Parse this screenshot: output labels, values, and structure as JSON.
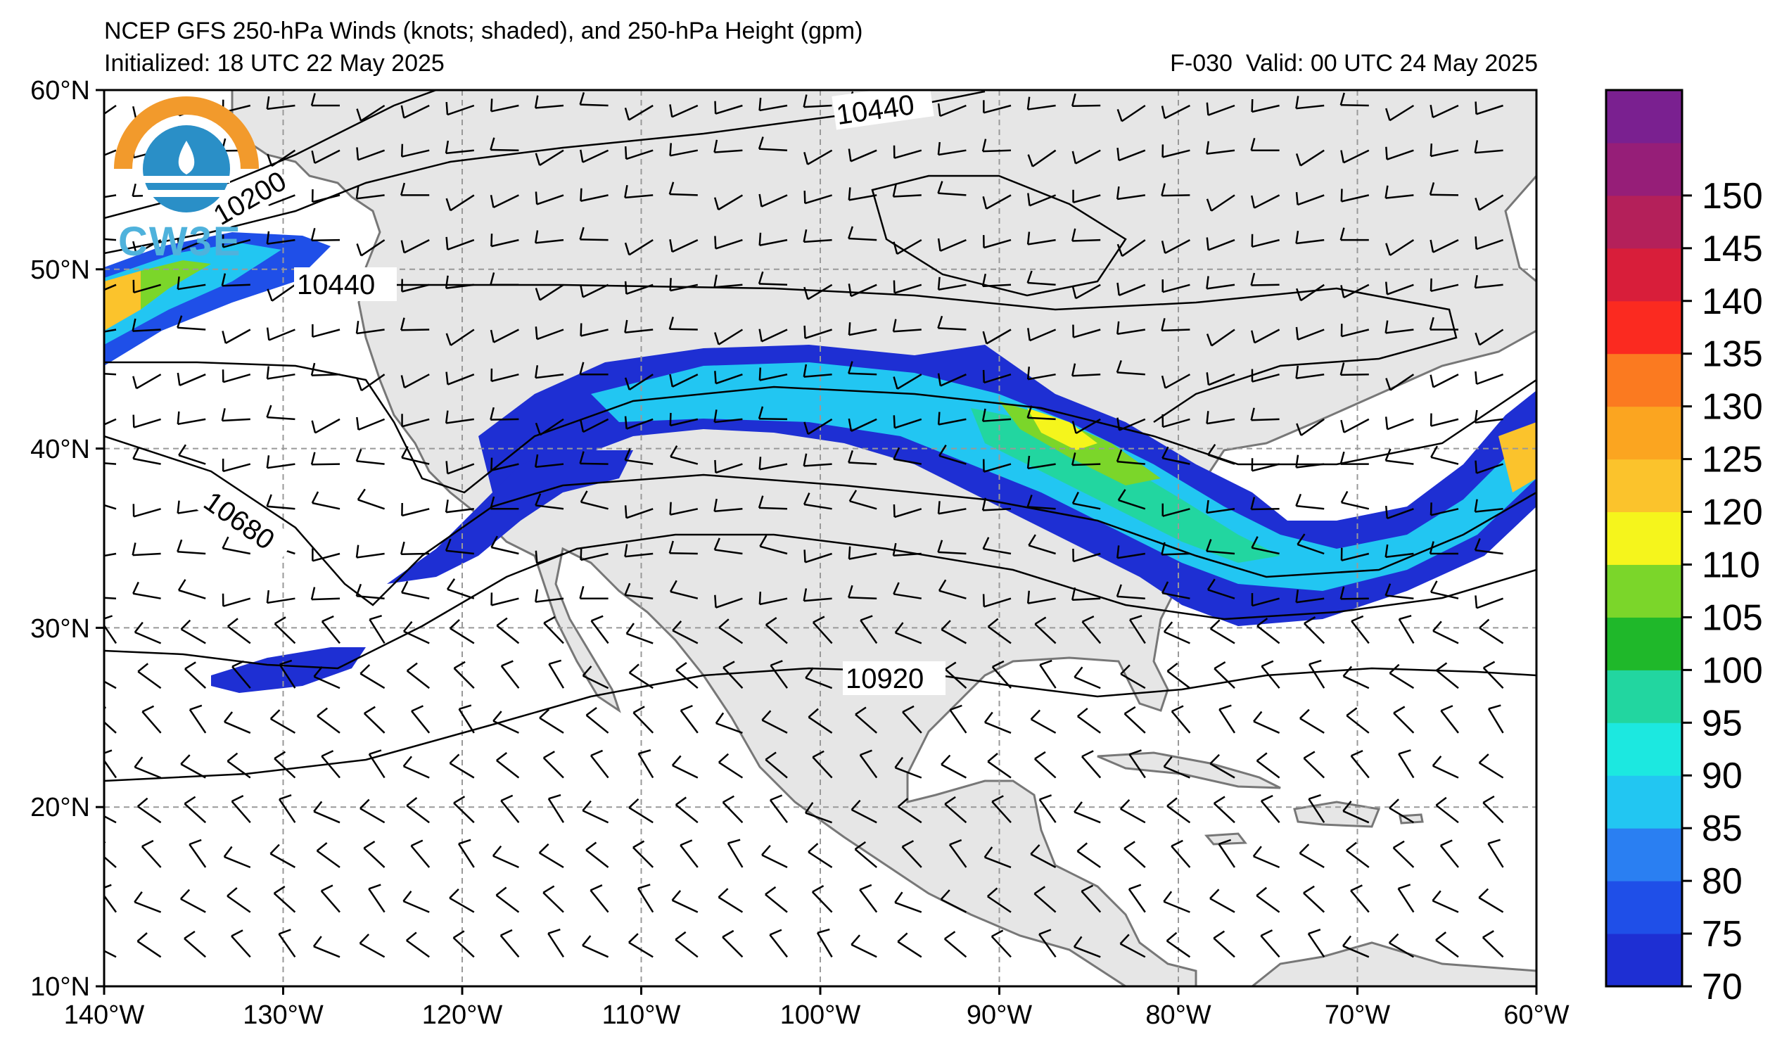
{
  "title": {
    "line1": "NCEP GFS 250-hPa Winds (knots; shaded), and 250-hPa Height (gpm)",
    "initialized": "Initialized: 18 UTC 22 May 2025",
    "valid": "F-030  Valid: 00 UTC 24 May 2025"
  },
  "logo": {
    "text": "CW3E",
    "icon": "cw3e-logo-icon"
  },
  "axes": {
    "lon_labels": [
      "140°W",
      "130°W",
      "120°W",
      "110°W",
      "100°W",
      "90°W",
      "80°W",
      "70°W",
      "60°W"
    ],
    "lat_labels": [
      "60°N",
      "50°N",
      "40°N",
      "30°N",
      "20°N",
      "10°N"
    ],
    "lon_range": [
      -140,
      -60
    ],
    "lat_range": [
      10,
      60
    ],
    "grid": true
  },
  "colorbar": {
    "levels": [
      "70",
      "75",
      "80",
      "85",
      "90",
      "95",
      "100",
      "105",
      "110",
      "120",
      "125",
      "130",
      "135",
      "140",
      "145",
      "150"
    ],
    "colors": [
      "#1e2fd3",
      "#1f4fe8",
      "#2a7ff2",
      "#22c6f2",
      "#1ce8e0",
      "#22d6a0",
      "#1fb82a",
      "#7bd62a",
      "#f5f51c",
      "#fbc32c",
      "#fba520",
      "#fb7a20",
      "#fb2a20",
      "#d81e3a",
      "#b4205a",
      "#961e78",
      "#7a2090"
    ]
  },
  "contour_labels": [
    "10200",
    "10440",
    "10440",
    "10680",
    "10920"
  ],
  "colors": {
    "land": "#e6e6e6",
    "coast": "#777777",
    "grid": "#999999"
  }
}
